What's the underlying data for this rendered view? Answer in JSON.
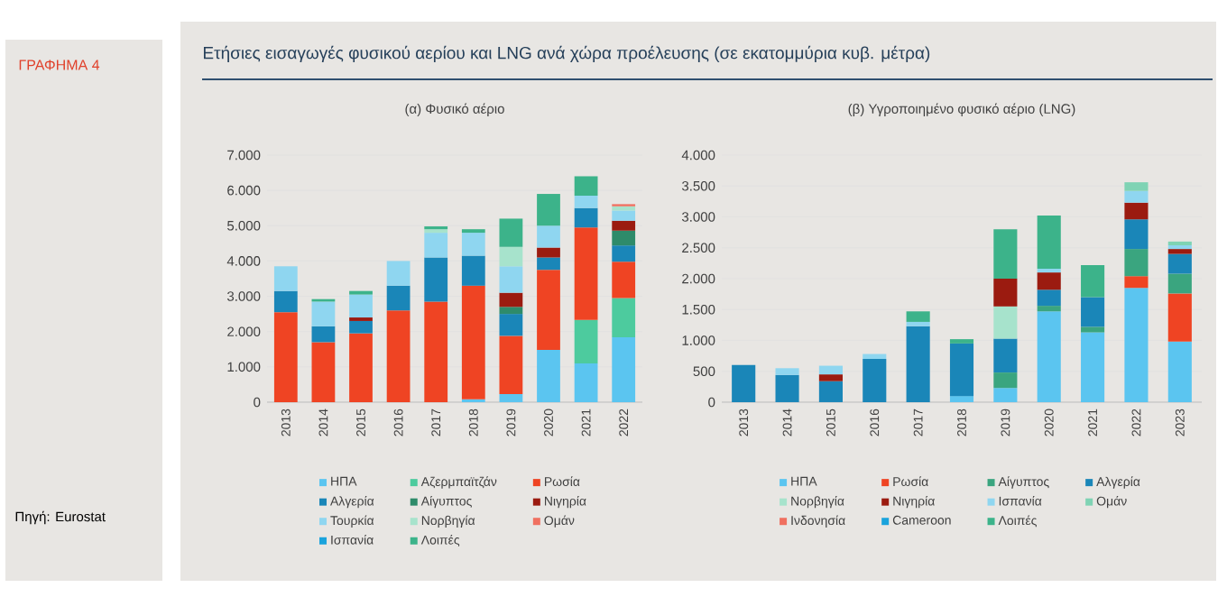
{
  "chart_data": [
    {
      "type": "bar",
      "stacked": true,
      "grid": "y",
      "legend": "bottom",
      "title": "(α) Φυσικό αέριο",
      "annotations": [
        "Ετήσιες εισαγωγές φυσικού αερίου και LNG ανά χώρα προέλευσης (σε εκατομμύρια κυβ. μέτρα)",
        "ΓΡΑΦΗΜΑ 4",
        "Πηγή: Eurostat"
      ],
      "categories": [
        "2013",
        "2014",
        "2015",
        "2016",
        "2017",
        "2018",
        "2019",
        "2020",
        "2021",
        "2022"
      ],
      "ylim": [
        0,
        7000
      ],
      "yticks": [
        0,
        {
          "value": 1000,
          "label": "1.000"
        },
        {
          "value": 2000,
          "label": "2.000"
        },
        {
          "value": 3000,
          "label": "3.000"
        },
        {
          "value": 4000,
          "label": "4.000"
        },
        {
          "value": 5000,
          "label": "5.000"
        },
        {
          "value": 6000,
          "label": "6.000"
        },
        {
          "value": 7000,
          "label": "7.000"
        }
      ],
      "series": [
        {
          "name": "ΗΠΑ",
          "color": "#5bc5f0",
          "values": [
            null,
            null,
            null,
            null,
            null,
            80,
            230,
            1480,
            1100,
            1840
          ]
        },
        {
          "name": "Αζερμπαϊτζάν",
          "color": "#4dcb9e",
          "values": [
            null,
            null,
            null,
            null,
            null,
            null,
            null,
            null,
            1230,
            1110
          ]
        },
        {
          "name": "Ρωσία",
          "color": "#ef4423",
          "values": [
            2550,
            1700,
            1950,
            2600,
            2850,
            3220,
            1650,
            2270,
            2620,
            1030
          ]
        },
        {
          "name": "Αλγερία",
          "color": "#1a86b8",
          "values": [
            600,
            450,
            350,
            700,
            1250,
            850,
            620,
            350,
            550,
            460
          ]
        },
        {
          "name": "Αίγυπτος",
          "color": "#2e8b6a",
          "values": [
            null,
            null,
            null,
            null,
            null,
            null,
            200,
            null,
            null,
            420
          ]
        },
        {
          "name": "Νιγηρία",
          "color": "#9b1b10",
          "values": [
            null,
            null,
            100,
            null,
            null,
            null,
            400,
            280,
            null,
            280
          ]
        },
        {
          "name": "Τουρκία",
          "color": "#8fd6f0",
          "values": [
            700,
            700,
            650,
            700,
            700,
            650,
            750,
            620,
            350,
            290
          ]
        },
        {
          "name": "Νορβηγία",
          "color": "#a7e3cc",
          "values": [
            null,
            null,
            null,
            null,
            100,
            null,
            550,
            null,
            null,
            120
          ]
        },
        {
          "name": "Ομάν",
          "color": "#f07060",
          "values": [
            null,
            null,
            null,
            null,
            null,
            null,
            null,
            null,
            null,
            60
          ]
        },
        {
          "name": "Ισπανία",
          "color": "#1aa3dc",
          "values": [
            null,
            null,
            null,
            null,
            null,
            null,
            null,
            null,
            null,
            null
          ]
        },
        {
          "name": "Λοιπές",
          "color": "#3cb38a",
          "values": [
            null,
            70,
            100,
            null,
            80,
            100,
            800,
            900,
            550,
            null
          ]
        }
      ]
    },
    {
      "type": "bar",
      "stacked": true,
      "grid": "y",
      "legend": "bottom",
      "title": "(β) Υγροποιημένο φυσικό αέριο (LNG)",
      "categories": [
        "2013",
        "2014",
        "2015",
        "2016",
        "2017",
        "2018",
        "2019",
        "2020",
        "2021",
        "2022",
        "2023"
      ],
      "ylim": [
        0,
        4000
      ],
      "yticks": [
        0,
        500,
        {
          "value": 1000,
          "label": "1.000"
        },
        {
          "value": 1500,
          "label": "1.500"
        },
        {
          "value": 2000,
          "label": "2.000"
        },
        {
          "value": 2500,
          "label": "2.500"
        },
        {
          "value": 3000,
          "label": "3.000"
        },
        {
          "value": 3500,
          "label": "3.500"
        },
        {
          "value": 4000,
          "label": "4.000"
        }
      ],
      "series": [
        {
          "name": "ΗΠΑ",
          "color": "#5bc5f0",
          "values": [
            null,
            null,
            null,
            null,
            null,
            100,
            230,
            1470,
            1130,
            1850,
            980
          ]
        },
        {
          "name": "Ρωσία",
          "color": "#ef4423",
          "values": [
            null,
            null,
            null,
            null,
            null,
            null,
            null,
            null,
            null,
            190,
            780
          ]
        },
        {
          "name": "Αίγυπτος",
          "color": "#3aa57f",
          "values": [
            null,
            null,
            null,
            null,
            null,
            null,
            250,
            90,
            90,
            440,
            320
          ]
        },
        {
          "name": "Αλγερία",
          "color": "#1a86b8",
          "values": [
            600,
            440,
            340,
            700,
            1230,
            850,
            550,
            260,
            480,
            480,
            320
          ]
        },
        {
          "name": "Νορβηγία",
          "color": "#a7e3cc",
          "values": [
            null,
            null,
            null,
            null,
            null,
            null,
            520,
            null,
            null,
            null,
            null
          ]
        },
        {
          "name": "Νιγηρία",
          "color": "#9b1b10",
          "values": [
            null,
            null,
            110,
            null,
            null,
            null,
            450,
            280,
            null,
            270,
            80
          ]
        },
        {
          "name": "Ισπανία",
          "color": "#8fd6f0",
          "values": [
            null,
            110,
            140,
            80,
            70,
            null,
            null,
            60,
            null,
            190,
            60
          ]
        },
        {
          "name": "Ομάν",
          "color": "#7fd3b4",
          "values": [
            null,
            null,
            null,
            null,
            null,
            null,
            null,
            null,
            null,
            140,
            60
          ]
        },
        {
          "name": "Ινδονησία",
          "color": "#f07060",
          "values": [
            null,
            null,
            null,
            null,
            null,
            null,
            null,
            null,
            null,
            null,
            null
          ]
        },
        {
          "name": "Cameroon",
          "color": "#1aa3dc",
          "values": [
            null,
            null,
            null,
            null,
            null,
            null,
            null,
            null,
            null,
            null,
            null
          ]
        },
        {
          "name": "Λοιπές",
          "color": "#3cb38a",
          "values": [
            null,
            null,
            null,
            null,
            170,
            70,
            800,
            860,
            520,
            null,
            null
          ]
        }
      ]
    }
  ]
}
